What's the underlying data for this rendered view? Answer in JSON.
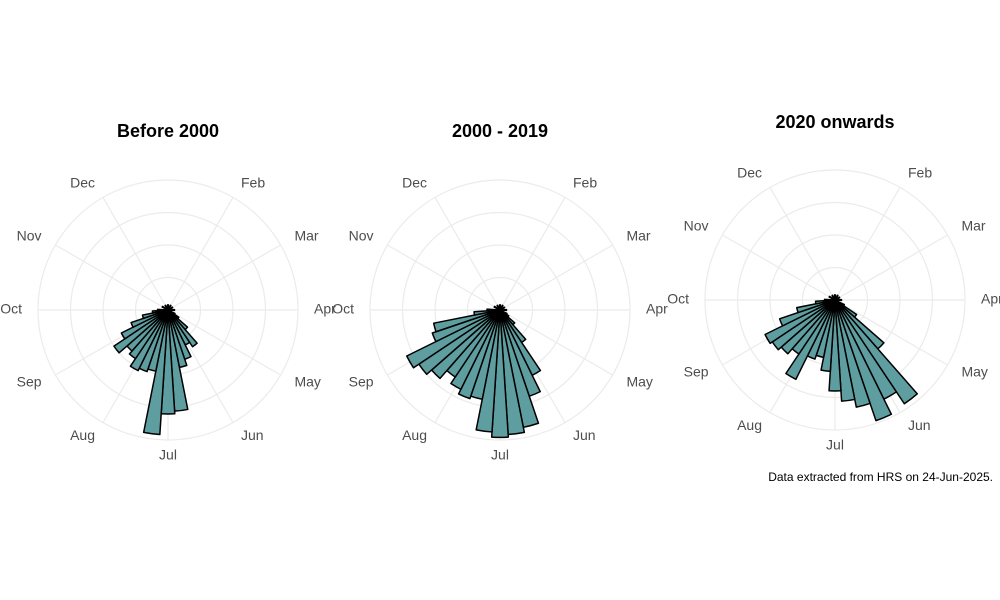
{
  "chart_data": [
    {
      "type": "polar_bar",
      "title": "Before 2000",
      "color": "#5f9ea0",
      "x": [
        0,
        1,
        2,
        3,
        4,
        4.25,
        4.5,
        4.75,
        5,
        5.25,
        5.5,
        5.75,
        6,
        6.25,
        6.5,
        6.75,
        7,
        7.25,
        7.5,
        7.75,
        8,
        8.25,
        8.5,
        8.75,
        9,
        10,
        11
      ],
      "values": [
        4,
        4,
        4,
        5,
        6,
        10,
        20,
        34,
        30,
        40,
        45,
        78,
        80,
        96,
        48,
        50,
        52,
        45,
        42,
        50,
        40,
        30,
        20,
        12,
        8,
        5,
        4
      ],
      "xlim": [
        0,
        12
      ],
      "xticks": [
        {
          "value": 1,
          "label": "Feb"
        },
        {
          "value": 2,
          "label": "Mar"
        },
        {
          "value": 3,
          "label": "Apr"
        },
        {
          "value": 4,
          "label": "May"
        },
        {
          "value": 5,
          "label": "Jun"
        },
        {
          "value": 6,
          "label": "Jul"
        },
        {
          "value": 7,
          "label": "Aug"
        },
        {
          "value": 8,
          "label": "Sep"
        },
        {
          "value": 9,
          "label": "Oct"
        },
        {
          "value": 10,
          "label": "Nov"
        },
        {
          "value": 11,
          "label": "Dec"
        }
      ],
      "rlim": [
        0,
        100
      ],
      "rticks": [
        25,
        50,
        75,
        100
      ]
    },
    {
      "type": "polar_bar",
      "title": "2000 - 2019",
      "color": "#5f9ea0",
      "x": [
        0,
        1,
        2,
        3,
        4,
        4.25,
        4.5,
        4.75,
        5,
        5.25,
        5.5,
        5.75,
        6,
        6.25,
        6.5,
        6.75,
        7,
        7.25,
        7.5,
        7.75,
        8,
        8.25,
        8.5,
        8.75,
        9,
        10,
        11
      ],
      "values": [
        4,
        4,
        4,
        5,
        6,
        8,
        15,
        30,
        56,
        70,
        92,
        96,
        98,
        94,
        70,
        72,
        68,
        62,
        70,
        75,
        80,
        55,
        52,
        20,
        10,
        5,
        4
      ],
      "xlim": [
        0,
        12
      ],
      "xticks": [
        {
          "value": 1,
          "label": "Feb"
        },
        {
          "value": 2,
          "label": "Mar"
        },
        {
          "value": 3,
          "label": "Apr"
        },
        {
          "value": 4,
          "label": "May"
        },
        {
          "value": 5,
          "label": "Jun"
        },
        {
          "value": 6,
          "label": "Jul"
        },
        {
          "value": 7,
          "label": "Aug"
        },
        {
          "value": 8,
          "label": "Sep"
        },
        {
          "value": 9,
          "label": "Oct"
        },
        {
          "value": 10,
          "label": "Nov"
        },
        {
          "value": 11,
          "label": "Dec"
        }
      ],
      "rlim": [
        0,
        100
      ],
      "rticks": [
        25,
        50,
        75,
        100
      ]
    },
    {
      "type": "polar_bar",
      "title": "2020 onwards",
      "color": "#5f9ea0",
      "x": [
        0,
        1,
        2,
        3,
        4,
        4.25,
        4.5,
        4.75,
        5,
        5.25,
        5.5,
        5.75,
        6,
        6.25,
        6.5,
        6.75,
        7,
        7.25,
        7.5,
        7.75,
        8,
        8.25,
        8.5,
        8.75,
        9,
        10,
        11
      ],
      "values": [
        4,
        4,
        4,
        5,
        8,
        20,
        50,
        96,
        85,
        98,
        84,
        78,
        70,
        55,
        45,
        48,
        68,
        50,
        55,
        58,
        60,
        45,
        30,
        15,
        8,
        5,
        4
      ],
      "xlim": [
        0,
        12
      ],
      "xticks": [
        {
          "value": 1,
          "label": "Feb"
        },
        {
          "value": 2,
          "label": "Mar"
        },
        {
          "value": 3,
          "label": "Apr"
        },
        {
          "value": 4,
          "label": "May"
        },
        {
          "value": 5,
          "label": "Jun"
        },
        {
          "value": 6,
          "label": "Jul"
        },
        {
          "value": 7,
          "label": "Aug"
        },
        {
          "value": 8,
          "label": "Sep"
        },
        {
          "value": 9,
          "label": "Oct"
        },
        {
          "value": 10,
          "label": "Nov"
        },
        {
          "value": 11,
          "label": "Dec"
        }
      ],
      "rlim": [
        0,
        100
      ],
      "rticks": [
        25,
        50,
        75,
        100
      ]
    }
  ],
  "note": "Data extracted from HRS on 24-Jun-2025."
}
